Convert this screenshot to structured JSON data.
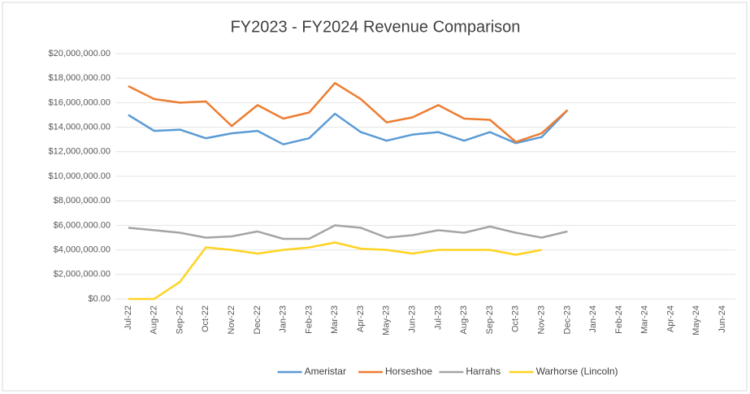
{
  "chart_data": {
    "type": "line",
    "title": "FY2023 - FY2024 Revenue Comparison",
    "categories": [
      "Jul-22",
      "Aug-22",
      "Sep-22",
      "Oct-22",
      "Nov-22",
      "Dec-22",
      "Jan-23",
      "Feb-23",
      "Mar-23",
      "Apr-23",
      "May-23",
      "Jun-23",
      "Jul-23",
      "Aug-23",
      "Sep-23",
      "Oct-23",
      "Nov-23",
      "Dec-23",
      "Jan-24",
      "Feb-24",
      "Mar-24",
      "Apr-24",
      "May-24",
      "Jun-24"
    ],
    "series": [
      {
        "name": "Ameristar",
        "color": "#5b9bd5",
        "values": [
          15000000,
          13700000,
          13800000,
          13100000,
          13500000,
          13700000,
          12600000,
          13100000,
          15100000,
          13600000,
          12900000,
          13400000,
          13600000,
          12900000,
          13600000,
          12700000,
          13200000,
          15400000,
          null,
          null,
          null,
          null,
          null,
          null
        ]
      },
      {
        "name": "Horseshoe",
        "color": "#ed7d31",
        "values": [
          17350000,
          16300000,
          16000000,
          16100000,
          14100000,
          15800000,
          14700000,
          15200000,
          17600000,
          16300000,
          14400000,
          14800000,
          15800000,
          14700000,
          14600000,
          12800000,
          13500000,
          15400000,
          null,
          null,
          null,
          null,
          null,
          null
        ]
      },
      {
        "name": "Harrahs",
        "color": "#a5a5a5",
        "values": [
          5800000,
          5600000,
          5400000,
          5000000,
          5100000,
          5500000,
          4900000,
          4900000,
          6000000,
          5800000,
          5000000,
          5200000,
          5600000,
          5400000,
          5900000,
          5400000,
          5000000,
          5500000,
          null,
          null,
          null,
          null,
          null,
          null
        ]
      },
      {
        "name": "Warhorse (Lincoln)",
        "color": "#ffd320",
        "values": [
          0,
          0,
          1400000,
          4200000,
          4000000,
          3700000,
          4000000,
          4200000,
          4600000,
          4100000,
          4000000,
          3700000,
          4000000,
          4000000,
          4000000,
          3600000,
          4000000,
          null,
          null,
          null,
          null,
          null,
          null,
          null
        ]
      }
    ],
    "ylim": [
      0,
      20000000
    ],
    "yticks": [
      {
        "value": 0,
        "label": "$0.00"
      },
      {
        "value": 2000000,
        "label": "$2,000,000.00"
      },
      {
        "value": 4000000,
        "label": "$4,000,000.00"
      },
      {
        "value": 6000000,
        "label": "$6,000,000.00"
      },
      {
        "value": 8000000,
        "label": "$8,000,000.00"
      },
      {
        "value": 10000000,
        "label": "$10,000,000.00"
      },
      {
        "value": 12000000,
        "label": "$12,000,000.00"
      },
      {
        "value": 14000000,
        "label": "$14,000,000.00"
      },
      {
        "value": 16000000,
        "label": "$16,000,000.00"
      },
      {
        "value": 18000000,
        "label": "$18,000,000.00"
      },
      {
        "value": 20000000,
        "label": "$20,000,000.00"
      }
    ],
    "grid": true,
    "legend": "bottom"
  }
}
